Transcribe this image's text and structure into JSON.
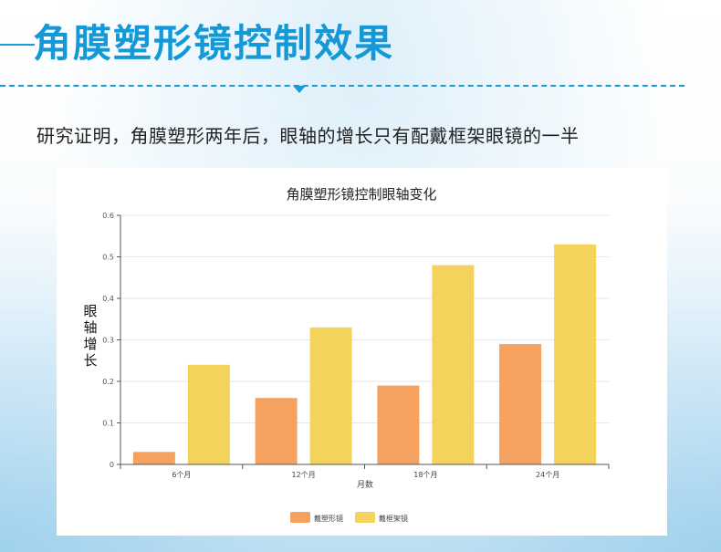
{
  "header": {
    "title": "角膜塑形镜控制效果",
    "subtitle": "研究证明，角膜塑形两年后，眼轴的增长只有配戴框架眼镜的一半"
  },
  "colors": {
    "accent": "#1a9ad6",
    "series_ortho": "#f5a261",
    "series_frame": "#f3d35b"
  },
  "chart_data": {
    "type": "bar",
    "title": "角膜塑形镜控制眼轴变化",
    "xlabel": "月数",
    "ylabel": "眼轴增长",
    "categories": [
      "6个月",
      "12个月",
      "18个月",
      "24个月"
    ],
    "series": [
      {
        "name": "戴塑形镜",
        "values": [
          0.03,
          0.16,
          0.19,
          0.29
        ]
      },
      {
        "name": "戴框架镜",
        "values": [
          0.24,
          0.33,
          0.48,
          0.53
        ]
      }
    ],
    "ylim": [
      0,
      0.6
    ],
    "yticks": [
      "0",
      "0.1",
      "0.2",
      "0.3",
      "0.4",
      "0.5",
      "0.6"
    ],
    "grid": true,
    "legend": "bottom-center"
  }
}
